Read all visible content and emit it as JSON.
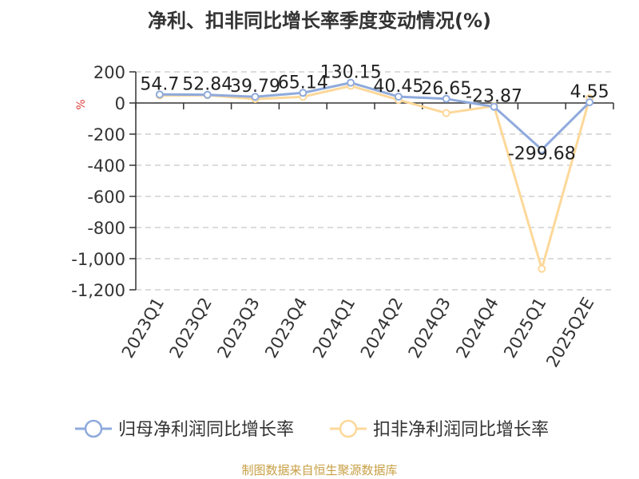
{
  "chart_data": {
    "type": "line",
    "title": "净利、扣非同比增长率季度变动情况(%)",
    "ylabel": "%",
    "categories": [
      "2023Q1",
      "2023Q2",
      "2023Q3",
      "2023Q4",
      "2024Q1",
      "2024Q2",
      "2024Q3",
      "2024Q4",
      "2025Q1",
      "2025Q2E"
    ],
    "yticks": [
      "200",
      "0",
      "-200",
      "-400",
      "-600",
      "-800",
      "-1,000",
      "-1,200"
    ],
    "ylim": [
      -1200,
      200
    ],
    "grid": true,
    "legend_position": "bottom",
    "series": [
      {
        "name": "归母净利润同比增长率",
        "color": "#8faadc",
        "values": [
          54.7,
          52.84,
          39.79,
          65.14,
          130.15,
          40.45,
          26.65,
          -23.87,
          -299.68,
          4.55
        ],
        "labels": [
          "54.7",
          "52.84",
          "39.79",
          "65.14",
          "130.15",
          "40.45",
          "26.65",
          "-23.87",
          "-299.68",
          "4.55"
        ]
      },
      {
        "name": "扣非净利润同比增长率",
        "color": "#fdd89a",
        "values": [
          48,
          50,
          25,
          40,
          110,
          20,
          -65,
          -20,
          -1065,
          30
        ]
      }
    ]
  },
  "source": "制图数据来自恒生聚源数据库"
}
